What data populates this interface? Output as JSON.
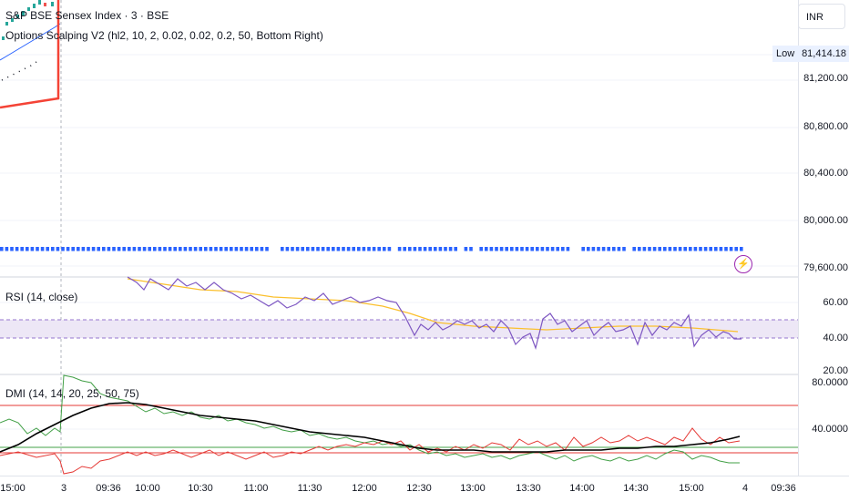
{
  "header": {
    "title": "S&P BSE Sensex Index · 3 · BSE",
    "indicator": "Options Scalping V2 (hl2, 10, 2, 0.02, 0.02, 0.2, 50, Bottom Right)"
  },
  "price_axis": {
    "currency": "INR",
    "low_label": "Low",
    "low_value": "81,414.18",
    "ticks": [
      "81,200.00",
      "80,800.00",
      "80,400.00",
      "80,000.00",
      "79,600.00"
    ]
  },
  "rsi_pane": {
    "legend": "RSI (14, close)",
    "ticks": [
      "60.00",
      "40.00",
      "20.00"
    ]
  },
  "dmi_pane": {
    "legend": "DMI (14, 14, 20, 25, 50, 75)",
    "ticks": [
      "80.0000",
      "40.0000"
    ]
  },
  "time_axis": {
    "labels": [
      "15:00",
      "3",
      "09:36",
      "10:00",
      "10:30",
      "11:00",
      "11:30",
      "12:00",
      "12:30",
      "13:00",
      "13:30",
      "14:00",
      "14:30",
      "15:00",
      "4",
      "09:36"
    ]
  },
  "colors": {
    "rsi_line": "#7e57c2",
    "rsi_ma": "#fbc02d",
    "rsi_band": "#ede7f6",
    "adx": "#000000",
    "plus_di": "#43a047",
    "minus_di": "#e53935",
    "dots": "#2962ff",
    "red_line": "#f44336",
    "alert": "#9c27b0"
  },
  "icons": {
    "alert": "lightning-icon"
  }
}
